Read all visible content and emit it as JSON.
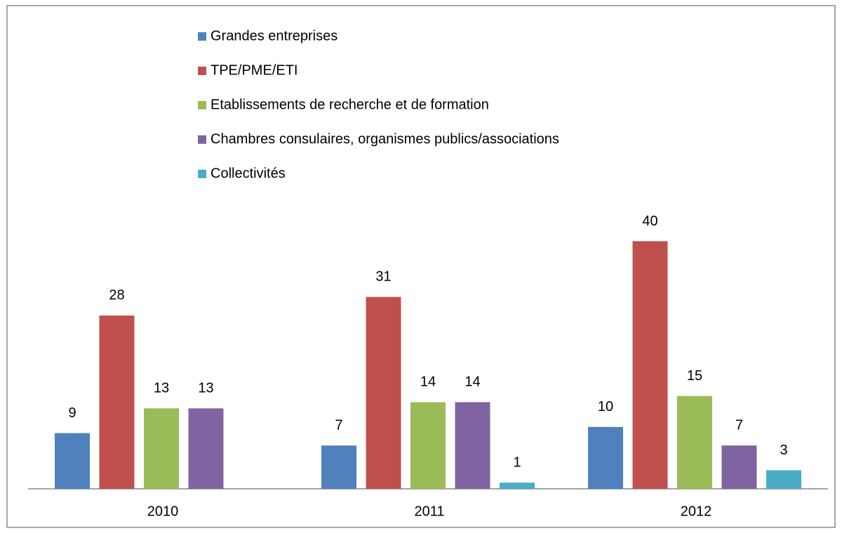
{
  "chart_data": {
    "type": "bar",
    "categories": [
      "2010",
      "2011",
      "2012"
    ],
    "series": [
      {
        "name": "Grandes entreprises",
        "color": "#4f81bd",
        "values": [
          9,
          7,
          10
        ]
      },
      {
        "name": "TPE/PME/ETI",
        "color": "#c0504d",
        "values": [
          28,
          31,
          40
        ]
      },
      {
        "name": "Etablissements de recherche et de formation",
        "color": "#9bbb59",
        "values": [
          13,
          14,
          15
        ]
      },
      {
        "name": "Chambres consulaires, organismes publics/associations",
        "color": "#8064a2",
        "values": [
          13,
          14,
          7
        ]
      },
      {
        "name": "Collectivités",
        "color": "#4bacc6",
        "values": [
          null,
          1,
          3
        ]
      }
    ],
    "ylim": [
      0,
      40
    ],
    "legend": "top"
  }
}
